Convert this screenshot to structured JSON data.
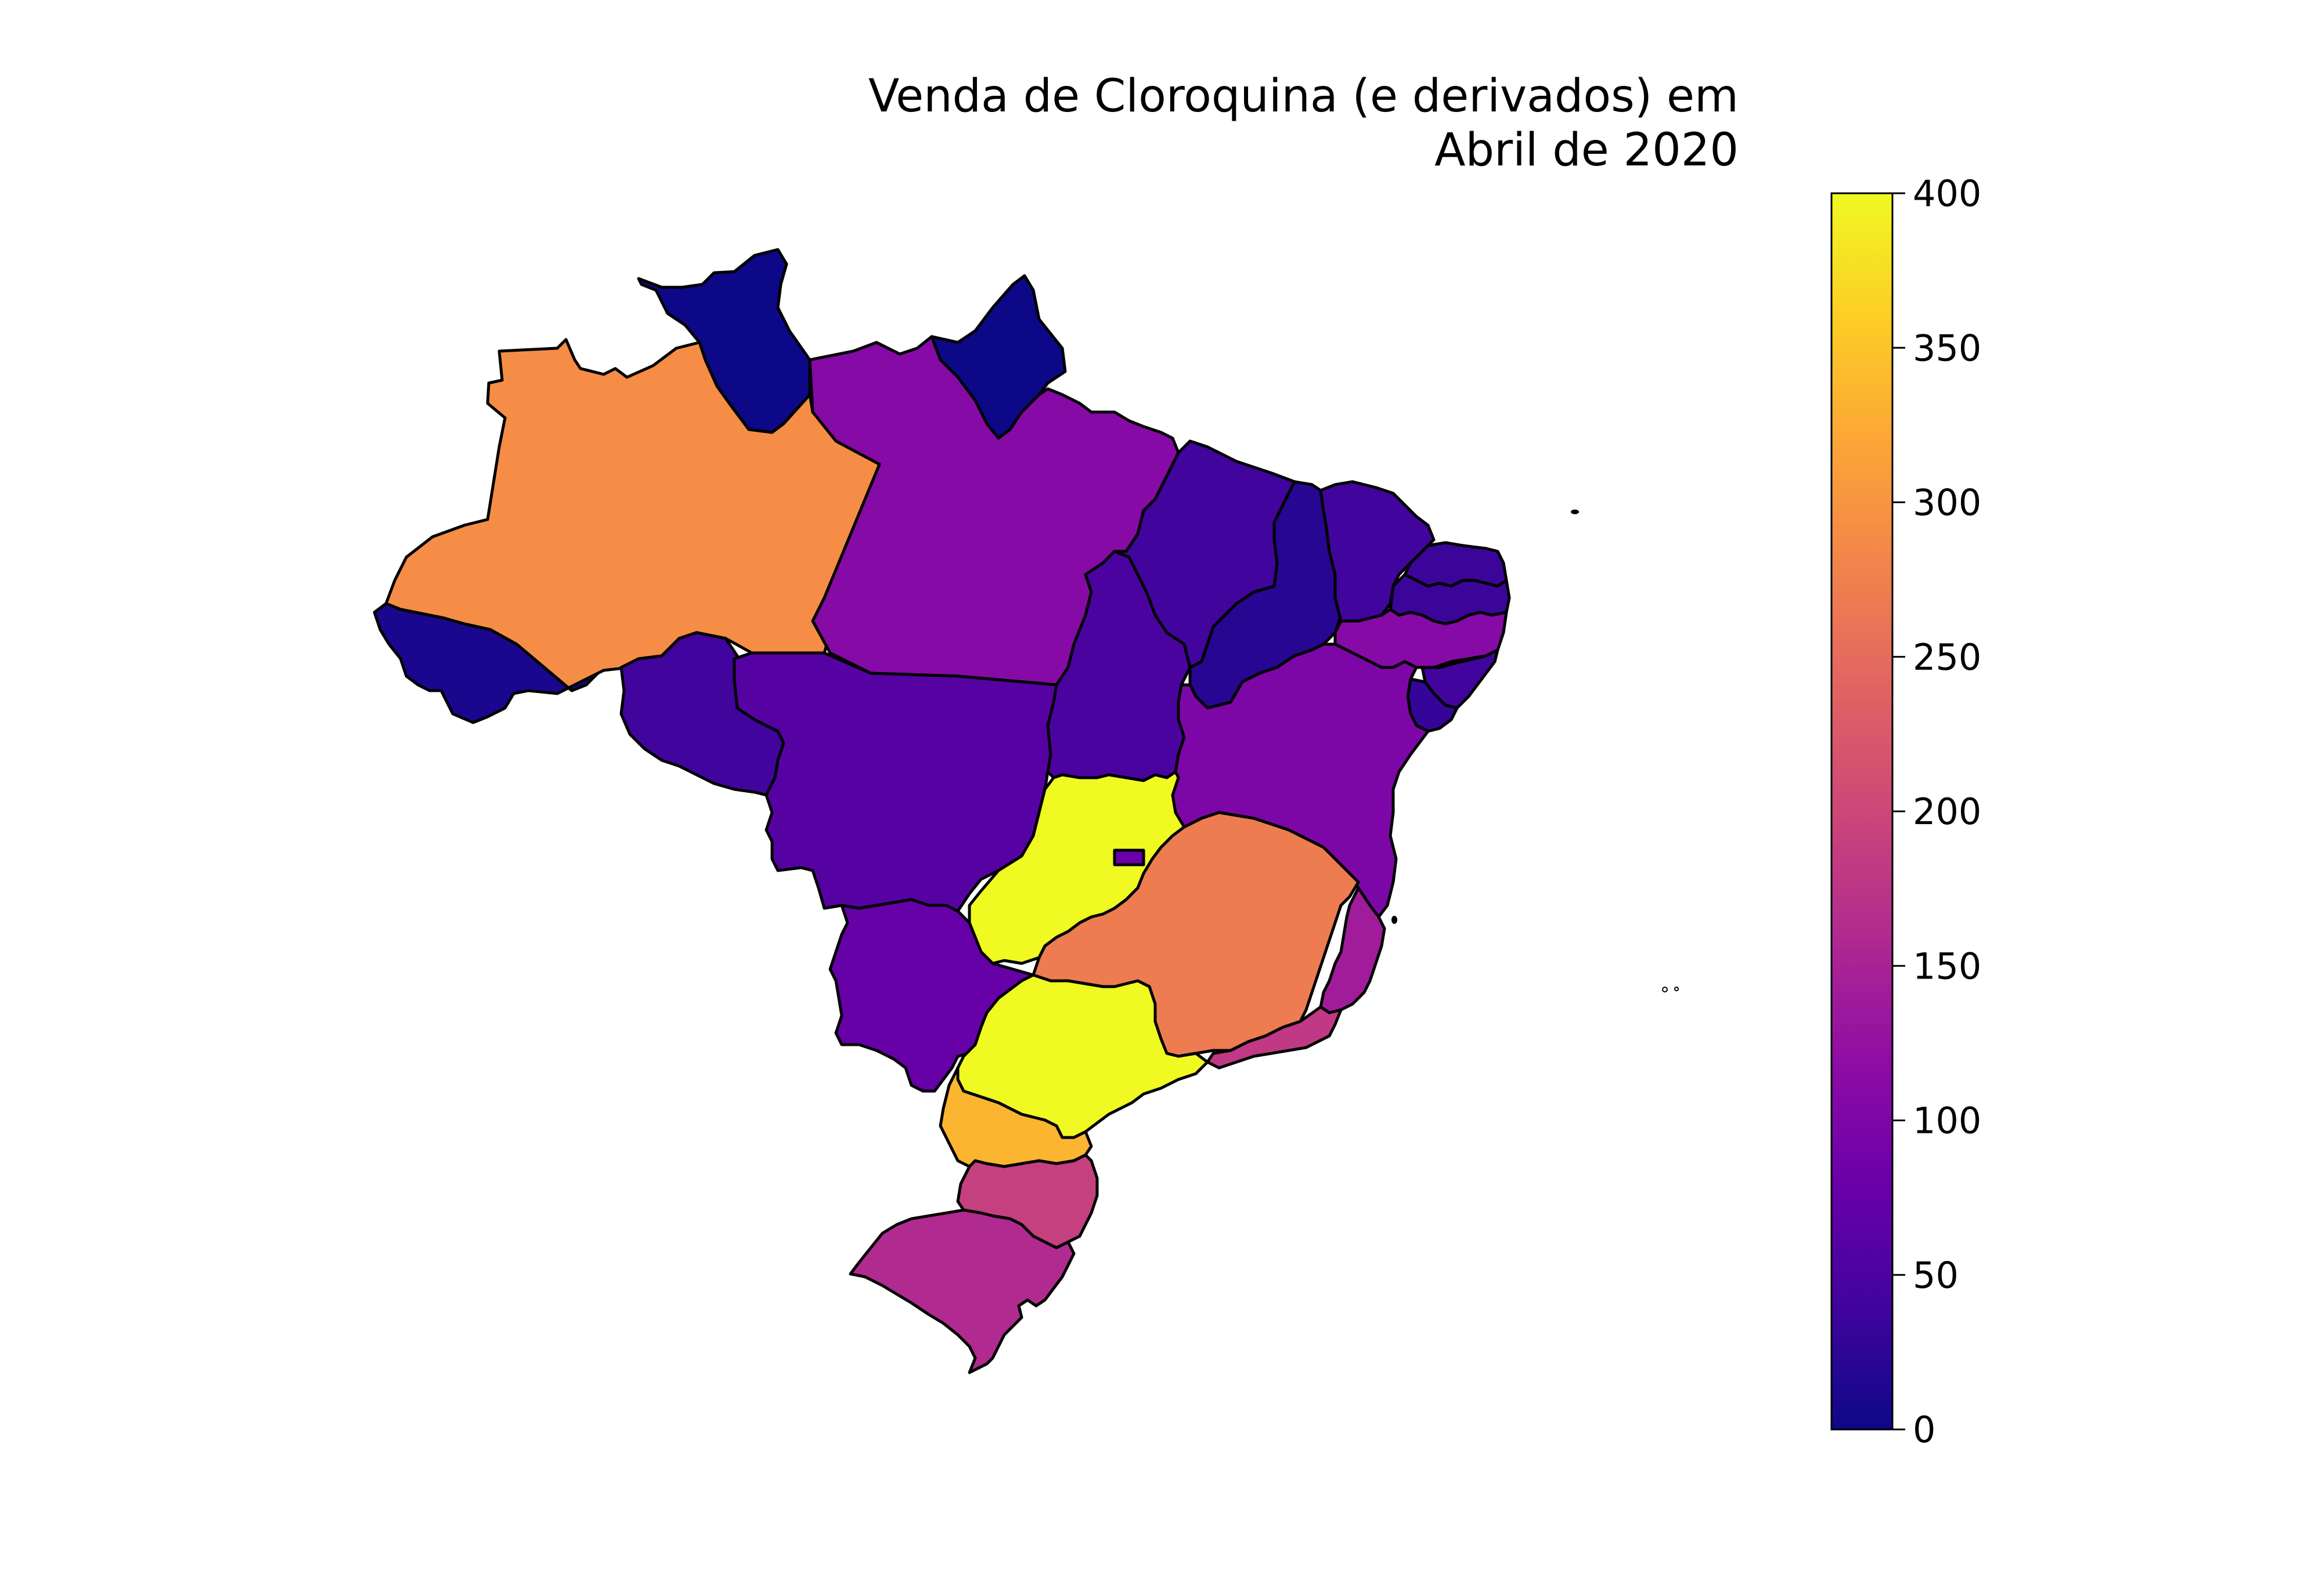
{
  "title_lines": [
    "Venda de Cloroquina (e derivados) em",
    "Abril de 2020"
  ],
  "colorbar": {
    "colormap": "plasma",
    "min": 0,
    "max": 400,
    "ticks": [
      "0",
      "50",
      "100",
      "150",
      "200",
      "250",
      "300",
      "350",
      "400"
    ],
    "stops": [
      "#0d0887",
      "#41049d",
      "#6a00a8",
      "#8f0da4",
      "#b12a90",
      "#cc4778",
      "#e16462",
      "#f2844b",
      "#fca636",
      "#fcce25",
      "#f0f921"
    ]
  },
  "chart_data": {
    "type": "choropleth",
    "title": "Venda de Cloroquina (e derivados) em Abril de 2020",
    "value_range": [
      0,
      400
    ],
    "regions": [
      {
        "id": "AM",
        "value": 290
      },
      {
        "id": "RR",
        "value": 0
      },
      {
        "id": "AP",
        "value": 0
      },
      {
        "id": "PA",
        "value": 110
      },
      {
        "id": "AC",
        "value": 10
      },
      {
        "id": "RO",
        "value": 40
      },
      {
        "id": "MT",
        "value": 60
      },
      {
        "id": "TO",
        "value": 50
      },
      {
        "id": "MA",
        "value": 40
      },
      {
        "id": "PI",
        "value": 20
      },
      {
        "id": "CE",
        "value": 40
      },
      {
        "id": "RN",
        "value": 35
      },
      {
        "id": "PB",
        "value": 35
      },
      {
        "id": "PE",
        "value": 110
      },
      {
        "id": "AL",
        "value": 40
      },
      {
        "id": "SE",
        "value": 30
      },
      {
        "id": "BA",
        "value": 100
      },
      {
        "id": "GO",
        "value": 400
      },
      {
        "id": "DF",
        "value": 80
      },
      {
        "id": "MS",
        "value": 75
      },
      {
        "id": "MG",
        "value": 270
      },
      {
        "id": "ES",
        "value": 140
      },
      {
        "id": "RJ",
        "value": 180
      },
      {
        "id": "SP",
        "value": 400
      },
      {
        "id": "PR",
        "value": 335
      },
      {
        "id": "SC",
        "value": 190
      },
      {
        "id": "RS",
        "value": 160
      }
    ]
  }
}
